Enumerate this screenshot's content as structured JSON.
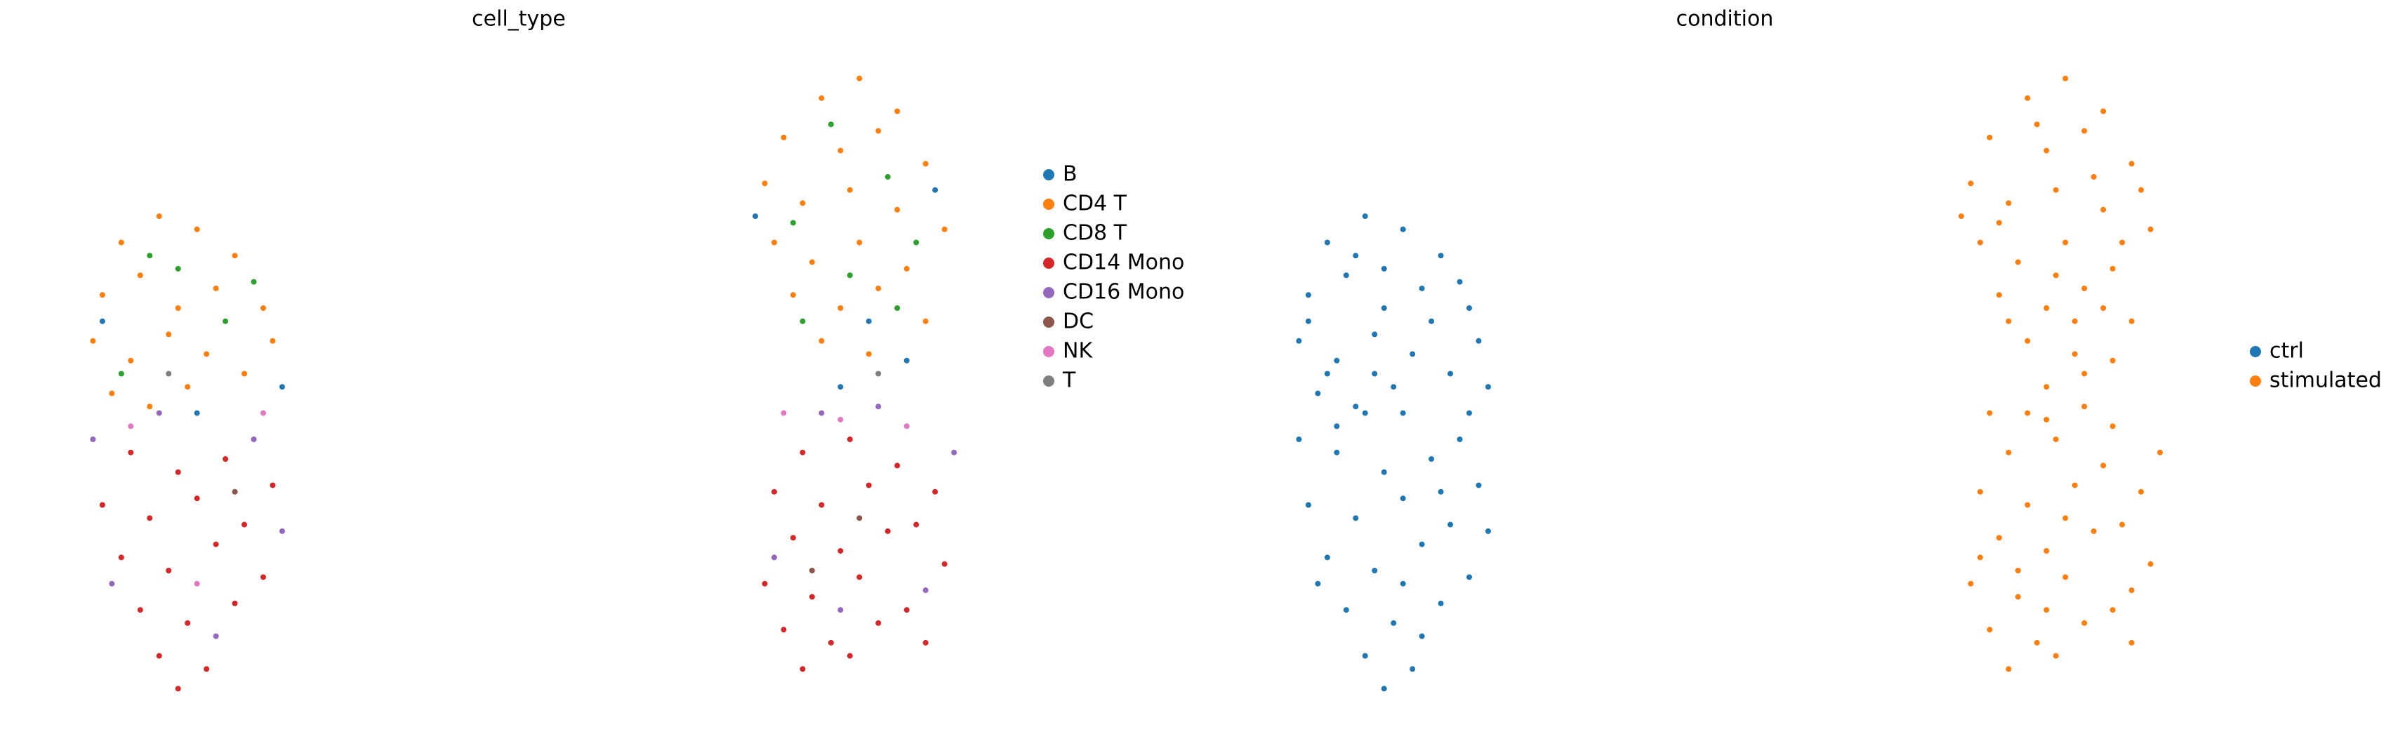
{
  "chart_data": [
    {
      "type": "scatter",
      "title": "cell_type",
      "xlim": [
        0,
        100
      ],
      "ylim": [
        0,
        100
      ],
      "legend": "right",
      "series": [
        {
          "name": "B",
          "color": "#1f77b4",
          "x": [
            16,
            25,
            6,
            94,
            75,
            87,
            91,
            84
          ],
          "values": [
            44,
            48,
            58,
            78,
            74,
            58,
            52,
            48
          ]
        },
        {
          "name": "CD4 T",
          "color": "#ff7f0e",
          "x": [
            8,
            12,
            16,
            20,
            6,
            10,
            14,
            18,
            23,
            5,
            9,
            13,
            17,
            21,
            7,
            11,
            15,
            24,
            82,
            86,
            90,
            78,
            84,
            88,
            93,
            76,
            80,
            85,
            90,
            95,
            77,
            81,
            86,
            91,
            79,
            84,
            88,
            93,
            82,
            87
          ],
          "values": [
            70,
            74,
            72,
            68,
            62,
            65,
            60,
            63,
            60,
            55,
            52,
            56,
            53,
            50,
            47,
            45,
            48,
            55,
            92,
            95,
            90,
            86,
            84,
            87,
            82,
            79,
            76,
            78,
            75,
            72,
            70,
            67,
            70,
            66,
            62,
            60,
            63,
            58,
            55,
            53
          ]
        },
        {
          "name": "CD8 T",
          "color": "#2ca02c",
          "x": [
            11,
            19,
            8,
            14,
            22,
            83,
            89,
            79,
            92,
            85,
            80,
            90
          ],
          "values": [
            68,
            58,
            50,
            66,
            64,
            88,
            80,
            73,
            70,
            65,
            58,
            60
          ]
        },
        {
          "name": "CD14 Mono",
          "color": "#d62728",
          "x": [
            9,
            14,
            19,
            24,
            6,
            11,
            16,
            21,
            8,
            13,
            18,
            23,
            10,
            15,
            20,
            12,
            17,
            14,
            80,
            85,
            90,
            94,
            77,
            82,
            87,
            92,
            79,
            84,
            89,
            95,
            76,
            81,
            86,
            91,
            78,
            83,
            88,
            93,
            85,
            80
          ],
          "values": [
            38,
            35,
            37,
            33,
            30,
            28,
            31,
            27,
            22,
            20,
            24,
            19,
            14,
            12,
            15,
            7,
            5,
            2,
            38,
            40,
            36,
            32,
            32,
            30,
            33,
            27,
            25,
            23,
            26,
            21,
            18,
            16,
            19,
            14,
            11,
            9,
            12,
            9,
            7,
            5
          ]
        },
        {
          "name": "CD16 Mono",
          "color": "#9467bd",
          "x": [
            5,
            22,
            18,
            7,
            25,
            12,
            88,
            82,
            96,
            77,
            93,
            84
          ],
          "values": [
            40,
            40,
            10,
            18,
            26,
            44,
            45,
            44,
            38,
            22,
            17,
            14
          ]
        },
        {
          "name": "DC",
          "color": "#8c564b",
          "x": [
            20,
            86,
            81
          ],
          "values": [
            32,
            28,
            20
          ]
        },
        {
          "name": "NK",
          "color": "#e377c2",
          "x": [
            9,
            23,
            16,
            84,
            91,
            78
          ],
          "values": [
            42,
            44,
            18,
            43,
            42,
            44
          ]
        },
        {
          "name": "T",
          "color": "#7f7f7f",
          "x": [
            13,
            88
          ],
          "values": [
            50,
            50
          ]
        }
      ]
    },
    {
      "type": "scatter",
      "title": "condition",
      "xlim": [
        0,
        100
      ],
      "ylim": [
        0,
        100
      ],
      "legend": "right",
      "series": [
        {
          "name": "ctrl",
          "color": "#1f77b4",
          "x": [
            8,
            12,
            16,
            20,
            6,
            10,
            14,
            18,
            23,
            5,
            9,
            13,
            17,
            21,
            7,
            11,
            15,
            24,
            11,
            19,
            8,
            14,
            22,
            16,
            25,
            6,
            9,
            14,
            19,
            24,
            6,
            11,
            16,
            21,
            8,
            13,
            18,
            23,
            10,
            15,
            20,
            12,
            17,
            14,
            5,
            22,
            18,
            7,
            25,
            12,
            20,
            9,
            23,
            16,
            13
          ],
          "values": [
            70,
            74,
            72,
            68,
            62,
            65,
            60,
            63,
            60,
            55,
            52,
            56,
            53,
            50,
            47,
            45,
            48,
            55,
            68,
            58,
            50,
            66,
            64,
            44,
            48,
            58,
            38,
            35,
            37,
            33,
            30,
            28,
            31,
            27,
            22,
            20,
            24,
            19,
            14,
            12,
            15,
            7,
            5,
            2,
            40,
            40,
            10,
            18,
            26,
            44,
            32,
            42,
            44,
            18,
            50
          ]
        },
        {
          "name": "stimulated",
          "color": "#ff7f0e",
          "x": [
            82,
            86,
            90,
            78,
            84,
            88,
            93,
            76,
            80,
            85,
            90,
            95,
            77,
            81,
            86,
            91,
            79,
            84,
            88,
            93,
            82,
            87,
            83,
            89,
            79,
            92,
            85,
            80,
            90,
            94,
            75,
            87,
            91,
            84,
            80,
            85,
            90,
            94,
            77,
            82,
            87,
            92,
            79,
            84,
            89,
            95,
            76,
            81,
            86,
            91,
            78,
            83,
            88,
            93,
            85,
            80,
            88,
            82,
            96,
            77,
            93,
            84,
            86,
            81,
            84,
            91,
            78,
            88
          ],
          "values": [
            92,
            95,
            90,
            86,
            84,
            87,
            82,
            79,
            76,
            78,
            75,
            72,
            70,
            67,
            70,
            66,
            62,
            60,
            63,
            58,
            55,
            53,
            88,
            80,
            73,
            70,
            65,
            58,
            60,
            78,
            74,
            58,
            52,
            48,
            38,
            40,
            36,
            32,
            32,
            30,
            33,
            27,
            25,
            23,
            26,
            21,
            18,
            16,
            19,
            14,
            11,
            9,
            12,
            9,
            7,
            5,
            45,
            44,
            38,
            22,
            17,
            14,
            28,
            20,
            43,
            42,
            44,
            50
          ]
        }
      ]
    }
  ]
}
